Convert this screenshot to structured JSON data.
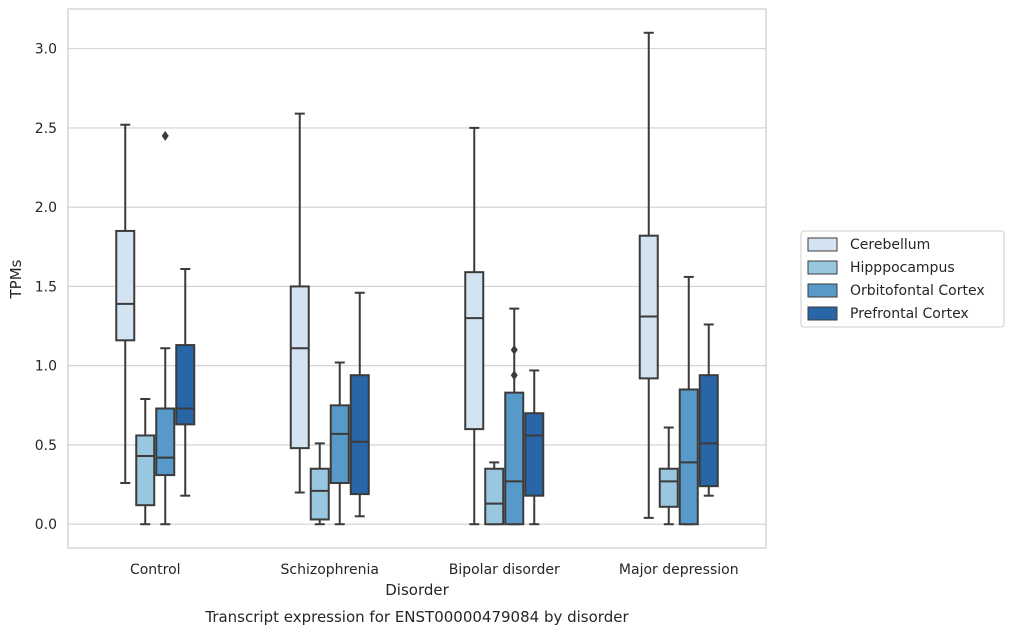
{
  "chart_data": {
    "type": "box",
    "title": "",
    "caption": "Transcript expression for ENST00000479084 by disorder",
    "xlabel": "Disorder",
    "ylabel": "TPMs",
    "ylim": [
      -0.15,
      3.25
    ],
    "yticks": [
      "0.0",
      "0.5",
      "1.0",
      "1.5",
      "2.0",
      "2.5",
      "3.0"
    ],
    "grid": true,
    "legend_position": "right",
    "categories": [
      "Control",
      "Schizophrenia",
      "Bipolar disorder",
      "Major depression"
    ],
    "series": [
      {
        "name": "Cerebellum",
        "color": "#d4e3f2",
        "boxes": [
          {
            "whislo": 0.26,
            "q1": 1.16,
            "med": 1.39,
            "q3": 1.85,
            "whishi": 2.52,
            "fliers": []
          },
          {
            "whislo": 0.2,
            "q1": 0.48,
            "med": 1.11,
            "q3": 1.5,
            "whishi": 2.59,
            "fliers": []
          },
          {
            "whislo": 0.0,
            "q1": 0.6,
            "med": 1.3,
            "q3": 1.59,
            "whishi": 2.5,
            "fliers": []
          },
          {
            "whislo": 0.04,
            "q1": 0.92,
            "med": 1.31,
            "q3": 1.82,
            "whishi": 3.1,
            "fliers": []
          }
        ]
      },
      {
        "name": "Hipppocampus",
        "color": "#9ac7e0",
        "boxes": [
          {
            "whislo": 0.0,
            "q1": 0.12,
            "med": 0.43,
            "q3": 0.56,
            "whishi": 0.79,
            "fliers": []
          },
          {
            "whislo": 0.0,
            "q1": 0.03,
            "med": 0.21,
            "q3": 0.35,
            "whishi": 0.51,
            "fliers": []
          },
          {
            "whislo": 0.0,
            "q1": 0.0,
            "med": 0.13,
            "q3": 0.35,
            "whishi": 0.39,
            "fliers": []
          },
          {
            "whislo": 0.0,
            "q1": 0.11,
            "med": 0.27,
            "q3": 0.35,
            "whishi": 0.61,
            "fliers": []
          }
        ]
      },
      {
        "name": "Orbitofontal Cortex",
        "color": "#5799c8",
        "boxes": [
          {
            "whislo": 0.0,
            "q1": 0.31,
            "med": 0.42,
            "q3": 0.73,
            "whishi": 1.11,
            "fliers": [
              2.45
            ]
          },
          {
            "whislo": 0.0,
            "q1": 0.26,
            "med": 0.57,
            "q3": 0.75,
            "whishi": 1.02,
            "fliers": []
          },
          {
            "whislo": 0.0,
            "q1": 0.0,
            "med": 0.27,
            "q3": 0.83,
            "whishi": 1.36,
            "fliers": [
              1.1,
              0.94
            ]
          },
          {
            "whislo": 0.0,
            "q1": 0.0,
            "med": 0.39,
            "q3": 0.85,
            "whishi": 1.56,
            "fliers": []
          }
        ]
      },
      {
        "name": "Prefrontal Cortex",
        "color": "#2966a8",
        "boxes": [
          {
            "whislo": 0.18,
            "q1": 0.63,
            "med": 0.73,
            "q3": 1.13,
            "whishi": 1.61,
            "fliers": []
          },
          {
            "whislo": 0.05,
            "q1": 0.19,
            "med": 0.52,
            "q3": 0.94,
            "whishi": 1.46,
            "fliers": []
          },
          {
            "whislo": 0.0,
            "q1": 0.18,
            "med": 0.56,
            "q3": 0.7,
            "whishi": 0.97,
            "fliers": []
          },
          {
            "whislo": 0.18,
            "q1": 0.24,
            "med": 0.51,
            "q3": 0.94,
            "whishi": 1.26,
            "fliers": []
          }
        ]
      }
    ]
  }
}
